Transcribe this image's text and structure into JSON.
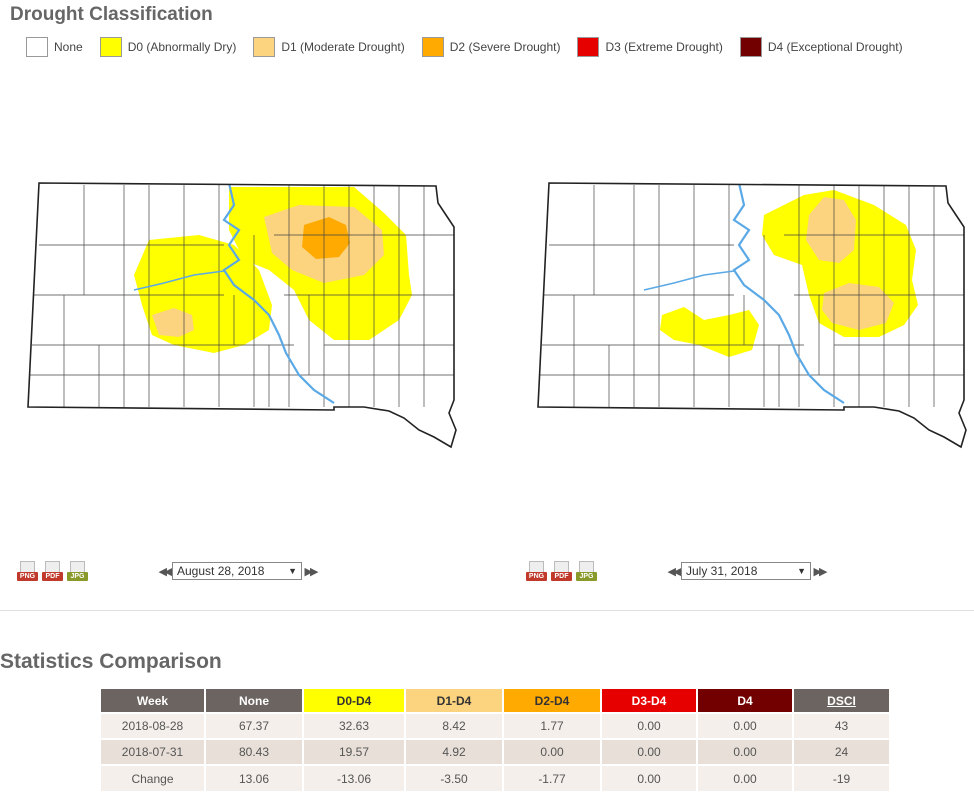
{
  "header": {
    "title": "Drought Classification"
  },
  "legend": [
    {
      "label": "None",
      "color": "#ffffff"
    },
    {
      "label": "D0 (Abnormally Dry)",
      "color": "#ffff00"
    },
    {
      "label": "D1 (Moderate Drought)",
      "color": "#fcd37f"
    },
    {
      "label": "D2 (Severe Drought)",
      "color": "#ffaa00"
    },
    {
      "label": "D3 (Extreme Drought)",
      "color": "#e60000"
    },
    {
      "label": "D4 (Exceptional Drought)",
      "color": "#730000"
    }
  ],
  "maps": [
    {
      "date": "August 28, 2018"
    },
    {
      "date": "July 31, 2018"
    }
  ],
  "downloads": {
    "png": "PNG",
    "pdf": "PDF",
    "jpg": "JPG"
  },
  "stats": {
    "title": "Statistics Comparison",
    "headers": [
      "Week",
      "None",
      "D0-D4",
      "D1-D4",
      "D2-D4",
      "D3-D4",
      "D4",
      "DSCI"
    ],
    "rows": [
      [
        "2018-08-28",
        "67.37",
        "32.63",
        "8.42",
        "1.77",
        "0.00",
        "0.00",
        "43"
      ],
      [
        "2018-07-31",
        "80.43",
        "19.57",
        "4.92",
        "0.00",
        "0.00",
        "0.00",
        "24"
      ],
      [
        "Change",
        "13.06",
        "-13.06",
        "-3.50",
        "-1.77",
        "0.00",
        "0.00",
        "-19"
      ]
    ]
  }
}
